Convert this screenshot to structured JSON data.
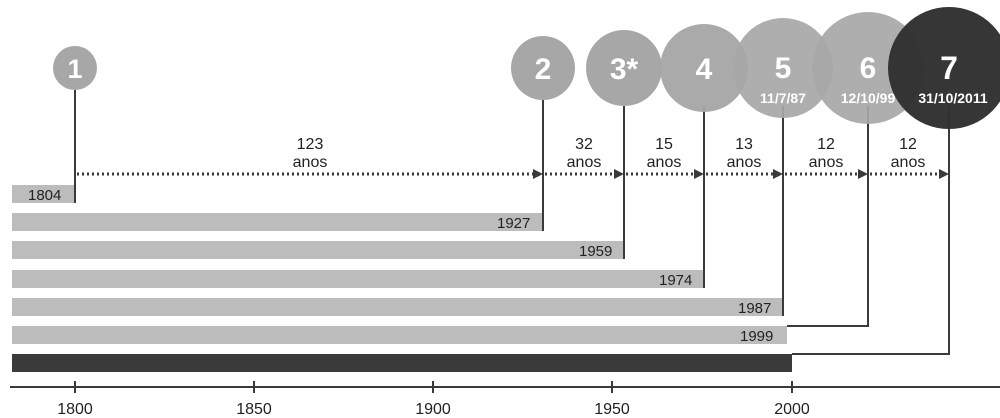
{
  "colors": {
    "bar_gray": "#bcbcbc",
    "bar_dark": "#3a3a3a",
    "circle_gray": "#a7a7a7",
    "circle_dark": "#303030",
    "line": "#3a3a3a",
    "text": "#222222",
    "circle_text": "#ffffff"
  },
  "milestones": [
    {
      "number": "1",
      "date": "",
      "year_label": "1804",
      "year": 1804
    },
    {
      "number": "2",
      "date": "",
      "year_label": "1927",
      "year": 1927
    },
    {
      "number": "3*",
      "date": "",
      "year_label": "1959",
      "year": 1959
    },
    {
      "number": "4",
      "date": "",
      "year_label": "1974",
      "year": 1974
    },
    {
      "number": "5",
      "date": "11/7/87",
      "year_label": "1987",
      "year": 1987
    },
    {
      "number": "6",
      "date": "12/10/99",
      "year_label": "1999",
      "year": 1999
    },
    {
      "number": "7",
      "date": "31/10/2011",
      "year_label": "",
      "year": 2011
    }
  ],
  "intervals": [
    {
      "value": "123",
      "unit": "anos"
    },
    {
      "value": "32",
      "unit": "anos"
    },
    {
      "value": "15",
      "unit": "anos"
    },
    {
      "value": "13",
      "unit": "anos"
    },
    {
      "value": "12",
      "unit": "anos"
    },
    {
      "value": "12",
      "unit": "anos"
    }
  ],
  "axis": {
    "ticks": [
      "1800",
      "1850",
      "1900",
      "1950",
      "2000"
    ]
  }
}
